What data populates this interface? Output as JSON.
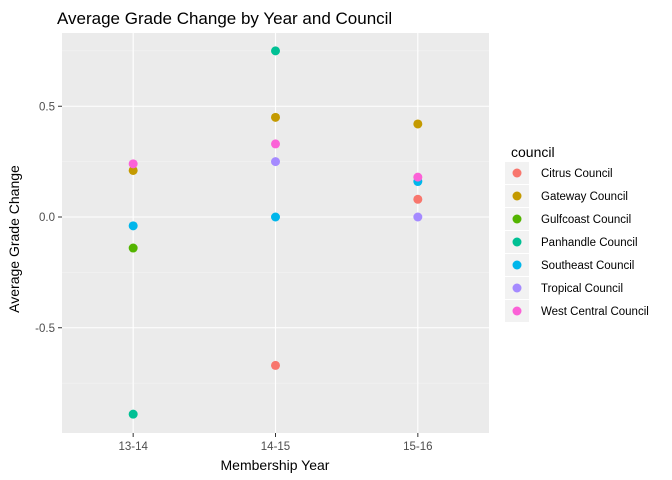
{
  "chart_data": {
    "type": "scatter",
    "title": "Average Grade Change by Year and Council",
    "xlabel": "Membership Year",
    "ylabel": "Average Grade Change",
    "categories": [
      "13-14",
      "14-15",
      "15-16"
    ],
    "yticks": [
      "0.5",
      "0.0",
      "-0.5"
    ],
    "ylim": [
      -0.96,
      0.81
    ],
    "grid": true,
    "legend_title": "council",
    "legend_position": "right",
    "series": [
      {
        "name": "Citrus Council",
        "color": "#F8766D",
        "values": [
          null,
          -0.67,
          0.08
        ]
      },
      {
        "name": "Gateway Council",
        "color": "#C49A00",
        "values": [
          0.21,
          0.45,
          0.42
        ]
      },
      {
        "name": "Gulfcoast Council",
        "color": "#53B400",
        "values": [
          -0.14,
          null,
          null
        ]
      },
      {
        "name": "Panhandle Council",
        "color": "#00C094",
        "values": [
          -0.89,
          0.75,
          null
        ]
      },
      {
        "name": "Southeast Council",
        "color": "#00B6EB",
        "values": [
          -0.04,
          0.0,
          0.16
        ]
      },
      {
        "name": "Tropical Council",
        "color": "#A58AFF",
        "values": [
          null,
          0.25,
          0.0
        ]
      },
      {
        "name": "West Central Council",
        "color": "#FB61D7",
        "values": [
          0.24,
          0.33,
          0.18
        ]
      }
    ]
  }
}
